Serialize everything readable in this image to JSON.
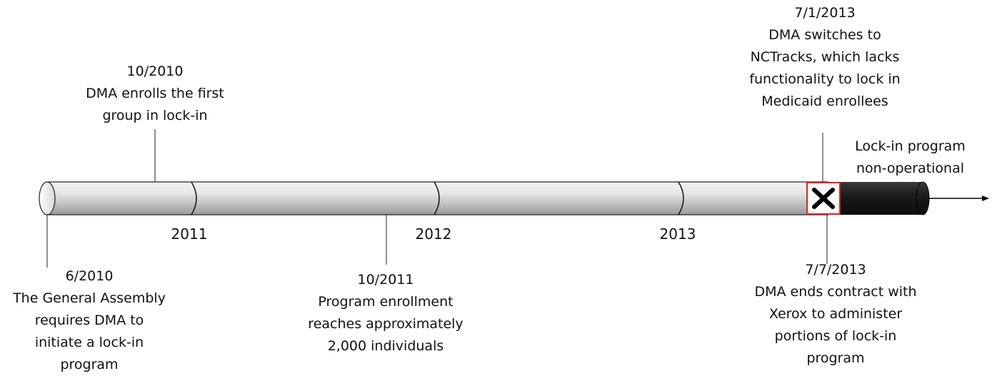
{
  "timeline": {
    "years": [
      "2011",
      "2012",
      "2013"
    ],
    "events": [
      {
        "id": "ev-2010-06",
        "date": "6/2010",
        "lines": [
          "The General Assembly",
          "requires DMA to",
          "initiate a lock-in",
          "program"
        ]
      },
      {
        "id": "ev-2010-10",
        "date": "10/2010",
        "lines": [
          "DMA enrolls the first",
          "group in lock-in"
        ]
      },
      {
        "id": "ev-2011-10",
        "date": "10/2011",
        "lines": [
          "Program enrollment",
          "reaches approximately",
          "2,000 individuals"
        ]
      },
      {
        "id": "ev-2013-07-01",
        "date": "7/1/2013",
        "lines": [
          "DMA switches to",
          "NCTracks, which lacks",
          "functionality to lock in",
          "Medicaid enrollees"
        ]
      },
      {
        "id": "ev-2013-07-07",
        "date": "7/7/2013",
        "lines": [
          "DMA ends contract with",
          "Xerox to administer",
          "portions of lock-in",
          "program"
        ]
      }
    ],
    "status": {
      "lines": [
        "Lock-in program",
        "non-operational"
      ]
    },
    "colors": {
      "bar_light": "#d9d9d9",
      "bar_dark": "#1a1a1a",
      "marker_border": "#e0201c",
      "text": "#111111"
    },
    "marker_icon": "x-icon"
  }
}
